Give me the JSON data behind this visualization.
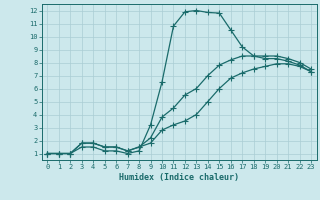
{
  "xlabel": "Humidex (Indice chaleur)",
  "bg_color": "#cce8ec",
  "line_color": "#1a6b6b",
  "grid_color": "#aacdd4",
  "xlim": [
    -0.5,
    23.5
  ],
  "ylim": [
    0.5,
    12.5
  ],
  "xticks": [
    0,
    1,
    2,
    3,
    4,
    5,
    6,
    7,
    8,
    9,
    10,
    11,
    12,
    13,
    14,
    15,
    16,
    17,
    18,
    19,
    20,
    21,
    22,
    23
  ],
  "yticks": [
    1,
    2,
    3,
    4,
    5,
    6,
    7,
    8,
    9,
    10,
    11,
    12
  ],
  "line1_x": [
    0,
    1,
    2,
    3,
    4,
    5,
    6,
    7,
    8,
    9,
    10,
    11,
    12,
    13,
    14,
    15,
    16,
    17,
    18,
    19,
    20,
    21,
    22,
    23
  ],
  "line1_y": [
    1,
    1,
    1,
    1.5,
    1.5,
    1.2,
    1.2,
    1.0,
    1.2,
    3.2,
    6.5,
    10.8,
    11.9,
    12.0,
    11.85,
    11.8,
    10.5,
    9.2,
    8.5,
    8.3,
    8.3,
    8.1,
    7.8,
    7.3
  ],
  "line2_x": [
    0,
    1,
    2,
    3,
    4,
    5,
    6,
    7,
    8,
    9,
    10,
    11,
    12,
    13,
    14,
    15,
    16,
    17,
    18,
    19,
    20,
    21,
    22,
    23
  ],
  "line2_y": [
    1,
    1,
    1,
    1.8,
    1.8,
    1.5,
    1.5,
    1.2,
    1.5,
    2.2,
    3.8,
    4.5,
    5.5,
    6.0,
    7.0,
    7.8,
    8.2,
    8.5,
    8.5,
    8.5,
    8.5,
    8.3,
    8.0,
    7.5
  ],
  "line3_x": [
    0,
    1,
    2,
    3,
    4,
    5,
    6,
    7,
    8,
    9,
    10,
    11,
    12,
    13,
    14,
    15,
    16,
    17,
    18,
    19,
    20,
    21,
    22,
    23
  ],
  "line3_y": [
    1,
    1,
    1,
    1.8,
    1.8,
    1.5,
    1.5,
    1.2,
    1.5,
    1.8,
    2.8,
    3.2,
    3.5,
    4.0,
    5.0,
    6.0,
    6.8,
    7.2,
    7.5,
    7.7,
    7.9,
    7.9,
    7.7,
    7.3
  ]
}
